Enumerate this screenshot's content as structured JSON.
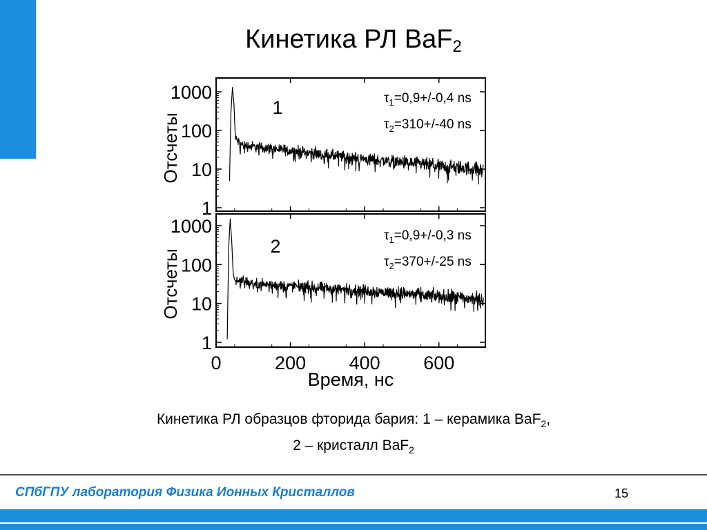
{
  "slide": {
    "title": "Кинетика РЛ BaF",
    "title_sub": "2",
    "caption_line1": "Кинетика РЛ образцов фторида бария: 1 – керамика BaF",
    "caption_line1_sub": "2",
    "caption_line1_end": ",",
    "caption_line2": "2 – кристалл BaF",
    "caption_line2_sub": "2",
    "footer": "СПбГПУ лаборатория Физика Ионных Кристаллов",
    "page_number": "15",
    "colors": {
      "accent": "#1a8fe0",
      "footer_band": "#1a8fe0"
    }
  },
  "chart_data": {
    "type": "line",
    "y_scale": "log",
    "x_axis": {
      "label": "Время, нс",
      "ticks": [
        "0",
        "200",
        "400",
        "600"
      ],
      "tick_values": [
        0,
        200,
        400,
        600
      ],
      "xlim": [
        0,
        725
      ]
    },
    "panels": [
      {
        "id": "1",
        "number_label": "1",
        "ylabel": "Отсчеты",
        "y_ticks": [
          "1",
          "10",
          "100",
          "1000"
        ],
        "y_tick_values": [
          1,
          10,
          100,
          1000
        ],
        "ylim": [
          1,
          2000
        ],
        "annotations": [
          {
            "sym": "τ",
            "sub": "1",
            "text": "=0,9+/-0,4 ns"
          },
          {
            "sym": "τ",
            "sub": "2",
            "text": "=310+/-40 ns"
          }
        ],
        "series": {
          "x": [
            36,
            40,
            44,
            48,
            52,
            70,
            100,
            200,
            300,
            400,
            500,
            600,
            700,
            720
          ],
          "y": [
            5,
            300,
            1300,
            500,
            60,
            42,
            38,
            30,
            23,
            18,
            15,
            12,
            10,
            9
          ]
        }
      },
      {
        "id": "2",
        "number_label": "2",
        "ylabel": "Отсчеты",
        "y_ticks": [
          "1",
          "10",
          "100",
          "1000"
        ],
        "y_tick_values": [
          1,
          10,
          100,
          1000
        ],
        "ylim": [
          1,
          2000
        ],
        "annotations": [
          {
            "sym": "τ",
            "sub": "1",
            "text": "=0,9+/-0,3 ns"
          },
          {
            "sym": "τ",
            "sub": "2",
            "text": "=370+/-25 ns"
          }
        ],
        "series": {
          "x": [
            30,
            34,
            38,
            42,
            46,
            50,
            70,
            100,
            200,
            300,
            400,
            500,
            600,
            700,
            720
          ],
          "y": [
            1.2,
            300,
            1500,
            400,
            60,
            40,
            36,
            32,
            28,
            24,
            21,
            18,
            15,
            13,
            12
          ]
        }
      }
    ]
  }
}
